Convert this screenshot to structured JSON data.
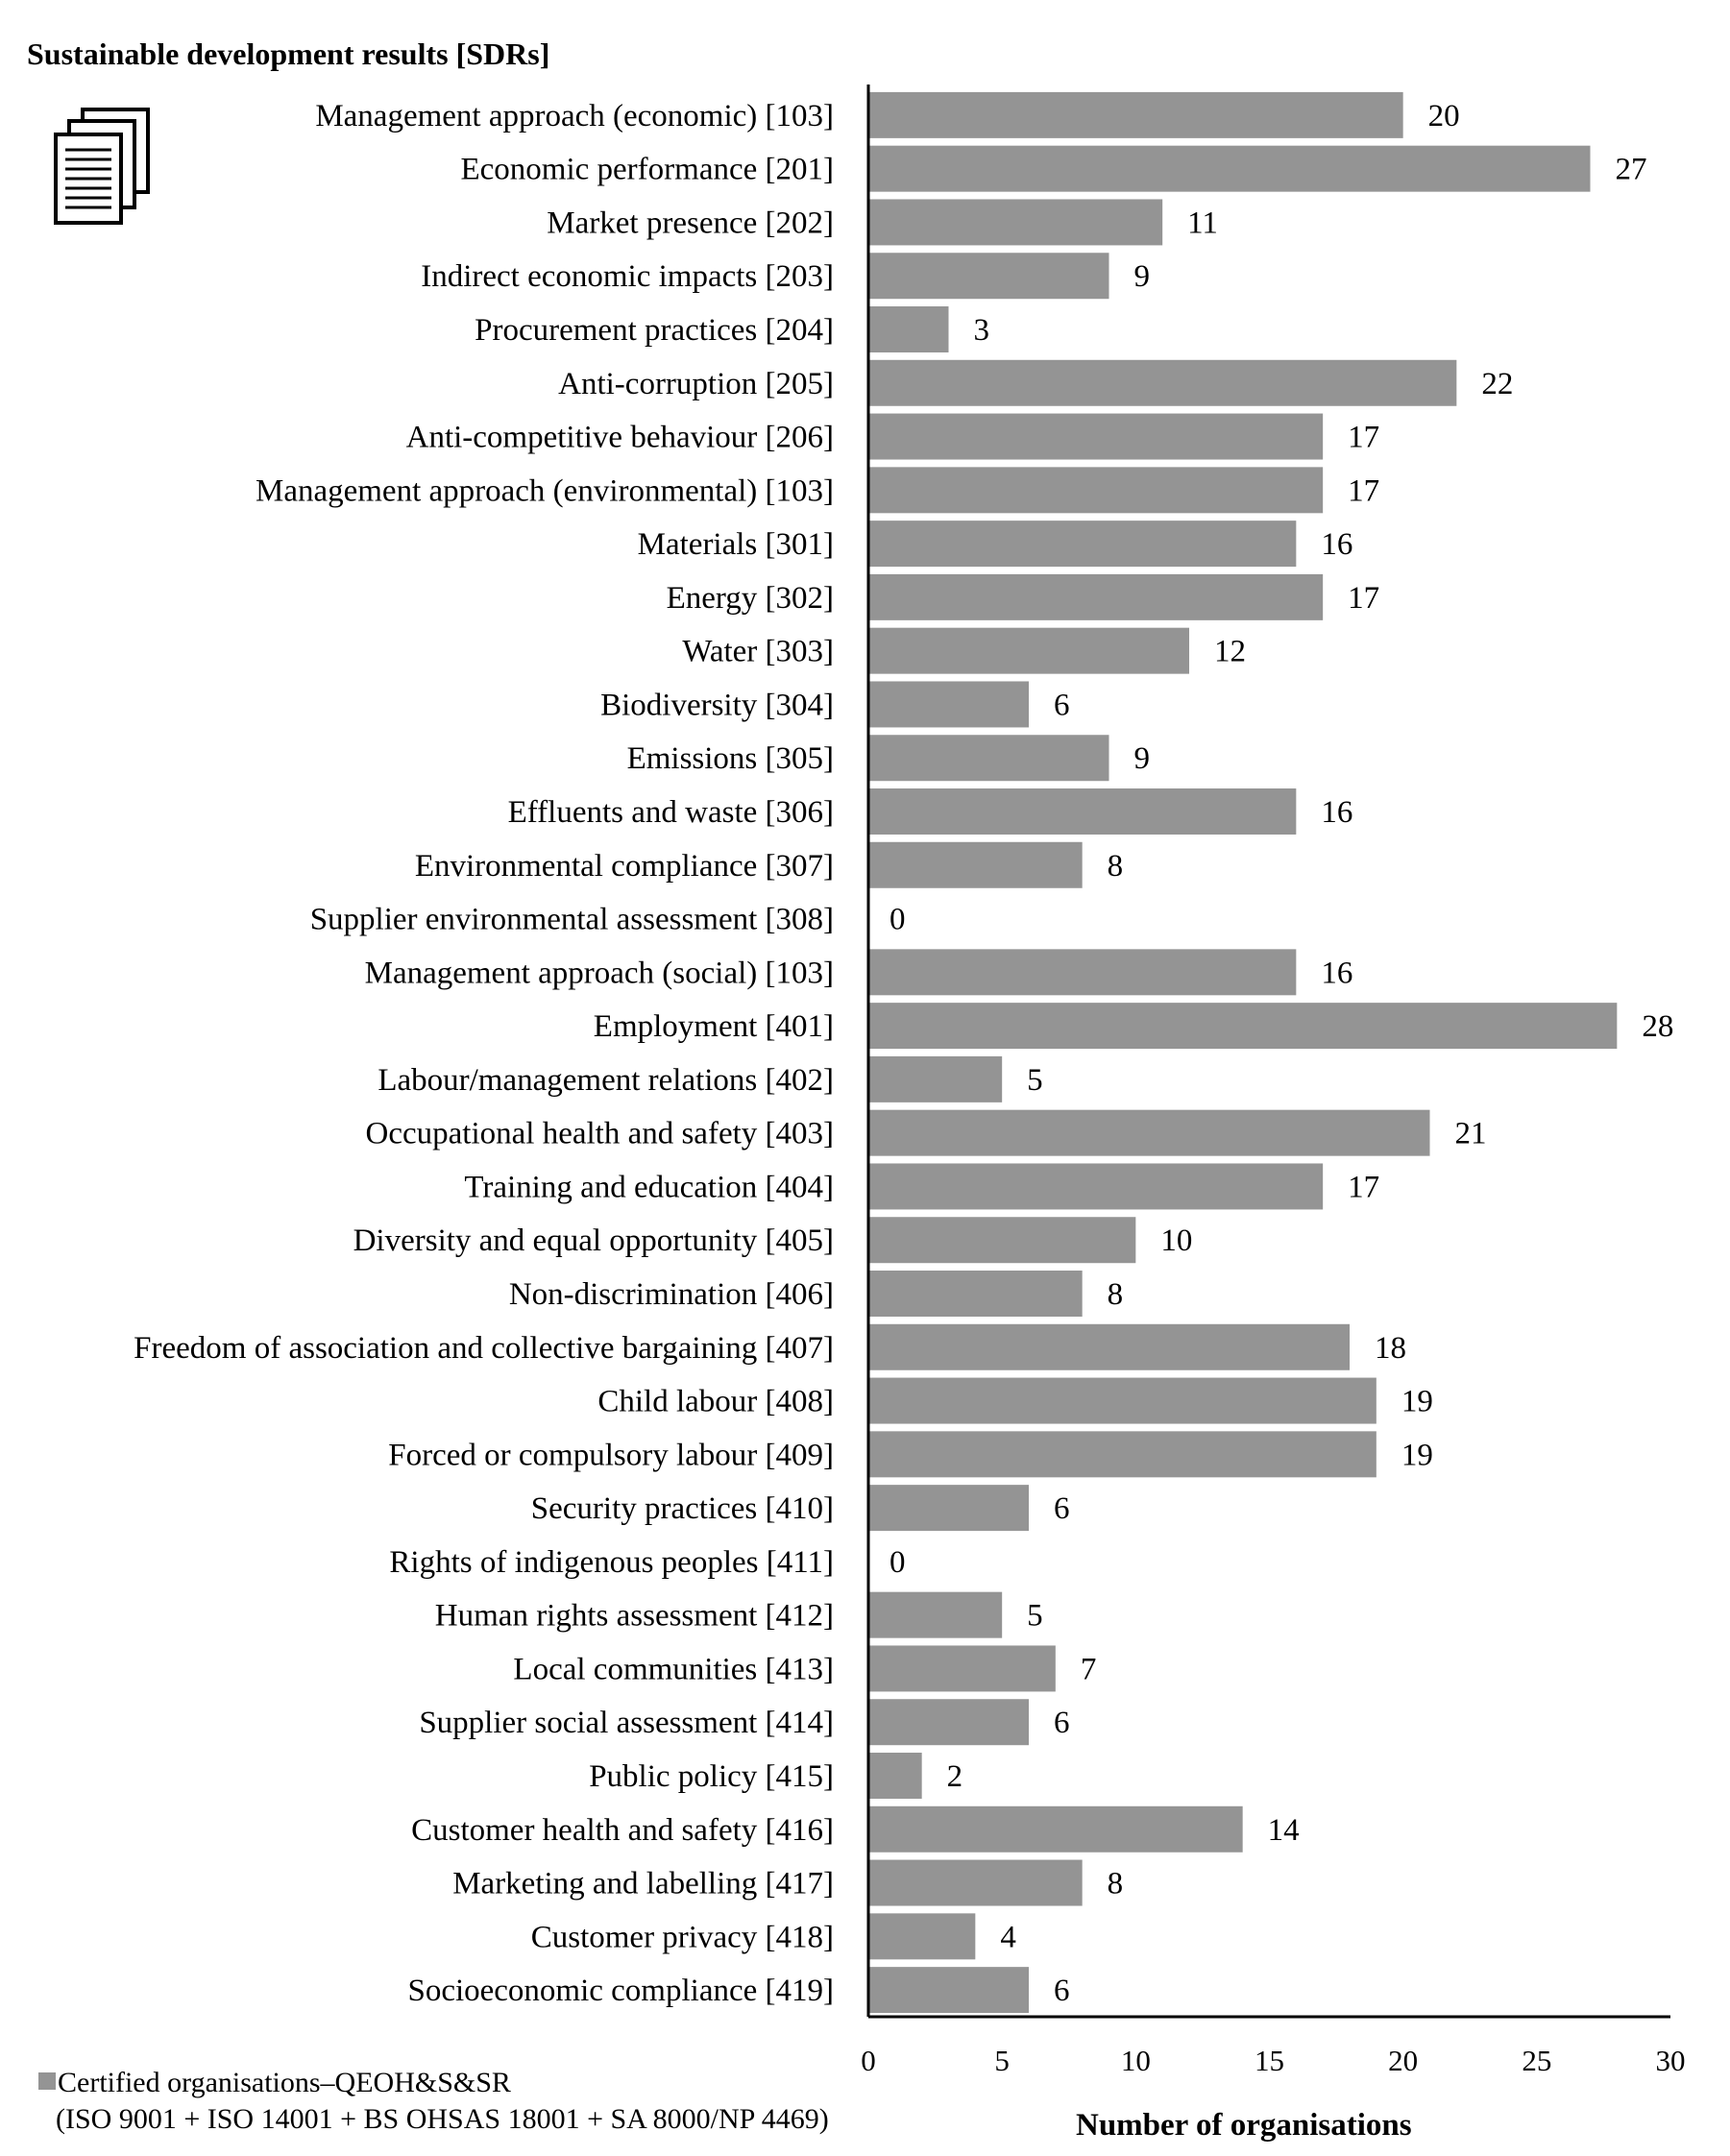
{
  "chart_data": {
    "type": "bar",
    "orientation": "horizontal",
    "title": "Sustainable development results [SDRs]",
    "xlabel": "Number of organisations",
    "ylabel": "",
    "xlim": [
      0,
      30
    ],
    "xticks": [
      0,
      5,
      10,
      15,
      20,
      25,
      30
    ],
    "grid": false,
    "bar_color": "#949494",
    "legend": {
      "placement": "bottom-left",
      "line1": "Certified organisations–QEOH&S&SR",
      "line2": "(ISO 9001 + ISO 14001 + BS OHSAS 18001 + SA 8000/NP 4469)"
    },
    "categories": [
      "Management approach (economic) [103]",
      "Economic performance [201]",
      "Market presence [202]",
      "Indirect economic impacts [203]",
      "Procurement practices [204]",
      "Anti-corruption [205]",
      "Anti-competitive behaviour [206]",
      "Management approach (environmental) [103]",
      "Materials [301]",
      "Energy [302]",
      "Water [303]",
      "Biodiversity [304]",
      "Emissions [305]",
      "Effluents and waste [306]",
      "Environmental compliance [307]",
      "Supplier environmental assessment [308]",
      "Management approach (social) [103]",
      "Employment [401]",
      "Labour/management relations [402]",
      "Occupational health and safety [403]",
      "Training and education [404]",
      "Diversity and equal opportunity [405]",
      "Non-discrimination [406]",
      "Freedom of association and collective bargaining [407]",
      "Child labour [408]",
      "Forced or compulsory labour [409]",
      "Security practices [410]",
      "Rights of indigenous peoples [411]",
      "Human rights assessment [412]",
      "Local communities [413]",
      "Supplier social assessment [414]",
      "Public policy [415]",
      "Customer health and safety [416]",
      "Marketing and labelling [417]",
      "Customer privacy [418]",
      "Socioeconomic compliance [419]"
    ],
    "values": [
      20,
      27,
      11,
      9,
      3,
      22,
      17,
      17,
      16,
      17,
      12,
      6,
      9,
      16,
      8,
      0,
      16,
      28,
      5,
      21,
      17,
      10,
      8,
      18,
      19,
      19,
      6,
      0,
      5,
      7,
      6,
      2,
      14,
      8,
      4,
      6
    ]
  }
}
